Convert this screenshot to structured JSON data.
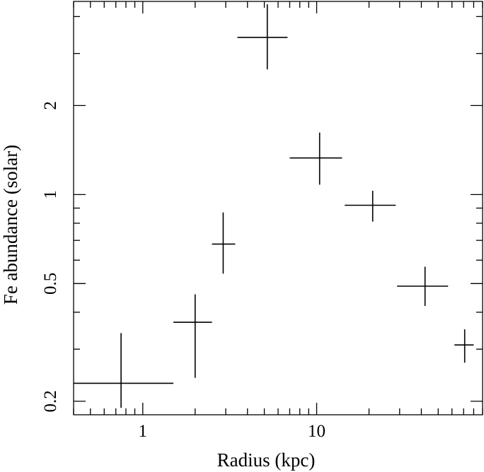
{
  "chart_data": {
    "type": "scatter",
    "xlabel": "Radius (kpc)",
    "ylabel": "Fe abundance (solar)",
    "x_scale": "log",
    "y_scale": "log",
    "xlim": [
      0.4,
      90
    ],
    "ylim": [
      0.18,
      4.5
    ],
    "x_ticks": [
      1,
      10
    ],
    "x_tick_labels": [
      "1",
      "10"
    ],
    "y_ticks": [
      0.2,
      0.5,
      1,
      2
    ],
    "y_tick_labels": [
      "0.2",
      "0.5",
      "1",
      "2"
    ],
    "grid": false,
    "series": [
      {
        "points": [
          {
            "x": 0.75,
            "x_lo": 0.4,
            "x_hi": 1.5,
            "y": 0.23,
            "y_lo": 0.19,
            "y_hi": 0.34
          },
          {
            "x": 2.0,
            "x_lo": 1.5,
            "x_hi": 2.5,
            "y": 0.37,
            "y_lo": 0.24,
            "y_hi": 0.46
          },
          {
            "x": 2.9,
            "x_lo": 2.5,
            "x_hi": 3.4,
            "y": 0.68,
            "y_lo": 0.54,
            "y_hi": 0.87
          },
          {
            "x": 5.2,
            "x_lo": 3.5,
            "x_hi": 6.8,
            "y": 3.4,
            "y_lo": 2.65,
            "y_hi": 4.4
          },
          {
            "x": 10.4,
            "x_lo": 7.0,
            "x_hi": 14.0,
            "y": 1.33,
            "y_lo": 1.08,
            "y_hi": 1.62
          },
          {
            "x": 21.0,
            "x_lo": 14.5,
            "x_hi": 28.5,
            "y": 0.92,
            "y_lo": 0.81,
            "y_hi": 1.03
          },
          {
            "x": 42.0,
            "x_lo": 29.0,
            "x_hi": 57.0,
            "y": 0.49,
            "y_lo": 0.42,
            "y_hi": 0.57
          },
          {
            "x": 71.0,
            "x_lo": 62.0,
            "x_hi": 80.0,
            "y": 0.31,
            "y_lo": 0.27,
            "y_hi": 0.35
          }
        ]
      }
    ]
  }
}
